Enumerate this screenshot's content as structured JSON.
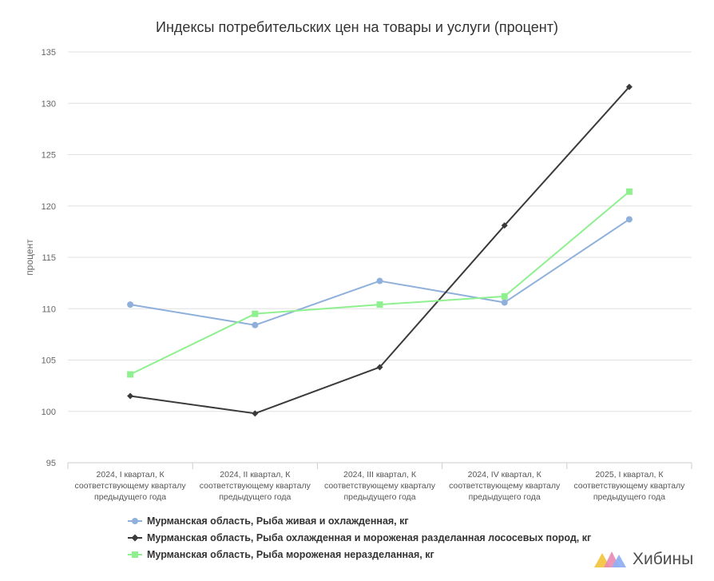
{
  "chart_data": {
    "type": "line",
    "title": "Индексы потребительских цен на товары и услуги (процент)",
    "ylabel": "процент",
    "xlabel": "",
    "ylim": [
      95,
      135
    ],
    "yticks": [
      95,
      100,
      105,
      110,
      115,
      120,
      125,
      130,
      135
    ],
    "grid": true,
    "legend_position": "bottom",
    "categories": [
      [
        "2024, I квартал, К",
        "соответствующему кварталу",
        "предыдущего года"
      ],
      [
        "2024, II квартал, К",
        "соответствующему кварталу",
        "предыдущего года"
      ],
      [
        "2024, III квартал, К",
        "соответствующему кварталу",
        "предыдущего года"
      ],
      [
        "2024, IV квартал, К",
        "соответствующему кварталу",
        "предыдущего года"
      ],
      [
        "2025, I квартал, К",
        "соответствующему кварталу",
        "предыдущего года"
      ]
    ],
    "series": [
      {
        "name": "Мурманская область, Рыба живая и охлажденная, кг",
        "color": "#8fb0da",
        "marker": "circle",
        "values": [
          110.4,
          108.4,
          112.7,
          110.6,
          118.7
        ]
      },
      {
        "name": "Мурманская область, Рыба охлажденная и мороженая разделанная лососевых пород, кг",
        "color": "#3a3a3a",
        "marker": "diamond",
        "values": [
          101.5,
          99.8,
          104.3,
          118.1,
          131.6
        ]
      },
      {
        "name": "Мурманская область, Рыба мороженая неразделанная, кг",
        "color": "#8ff08f",
        "marker": "square",
        "values": [
          103.6,
          109.5,
          110.4,
          111.2,
          121.4
        ]
      }
    ]
  },
  "branding": {
    "logo_text": "Хибины",
    "logo_icon": "mountains-logo-icon"
  }
}
